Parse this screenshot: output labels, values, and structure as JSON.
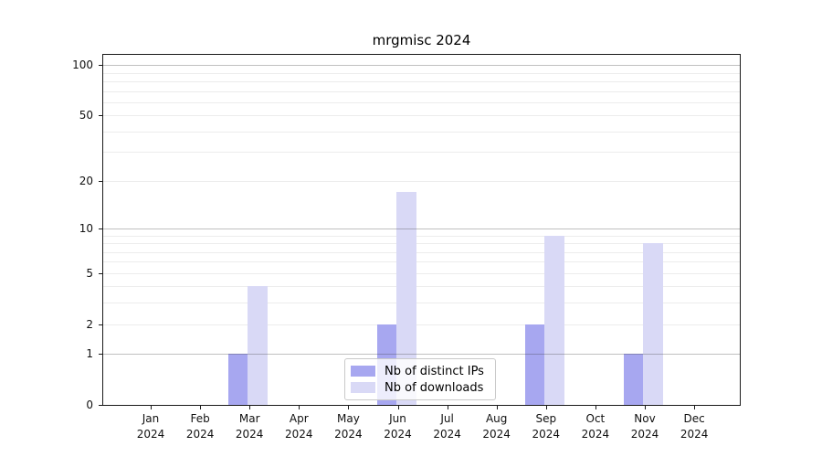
{
  "chart_data": {
    "type": "bar",
    "title": "mrgmisc 2024",
    "x_tick_year": "2024",
    "categories": [
      "Jan",
      "Feb",
      "Mar",
      "Apr",
      "May",
      "Jun",
      "Jul",
      "Aug",
      "Sep",
      "Oct",
      "Nov",
      "Dec"
    ],
    "series": [
      {
        "name": "Nb of distinct IPs",
        "color": "#a7a7f0",
        "values": [
          0,
          0,
          1,
          0,
          0,
          2,
          0,
          0,
          2,
          0,
          1,
          0
        ]
      },
      {
        "name": "Nb of downloads",
        "color": "#d9d9f6",
        "values": [
          0,
          0,
          4,
          0,
          0,
          17,
          0,
          0,
          9,
          0,
          8,
          0
        ]
      }
    ],
    "y_axis": {
      "scale": "log10(value+1)",
      "tick_values": [
        0,
        1,
        2,
        5,
        10,
        20,
        50,
        100
      ],
      "major_grid_values": [
        1,
        10,
        100
      ],
      "minor_grid_values": [
        2,
        3,
        4,
        5,
        6,
        7,
        8,
        9,
        20,
        30,
        40,
        50,
        60,
        70,
        80,
        90
      ],
      "max": 115
    },
    "legend_position": "lower center",
    "grid": true
  }
}
